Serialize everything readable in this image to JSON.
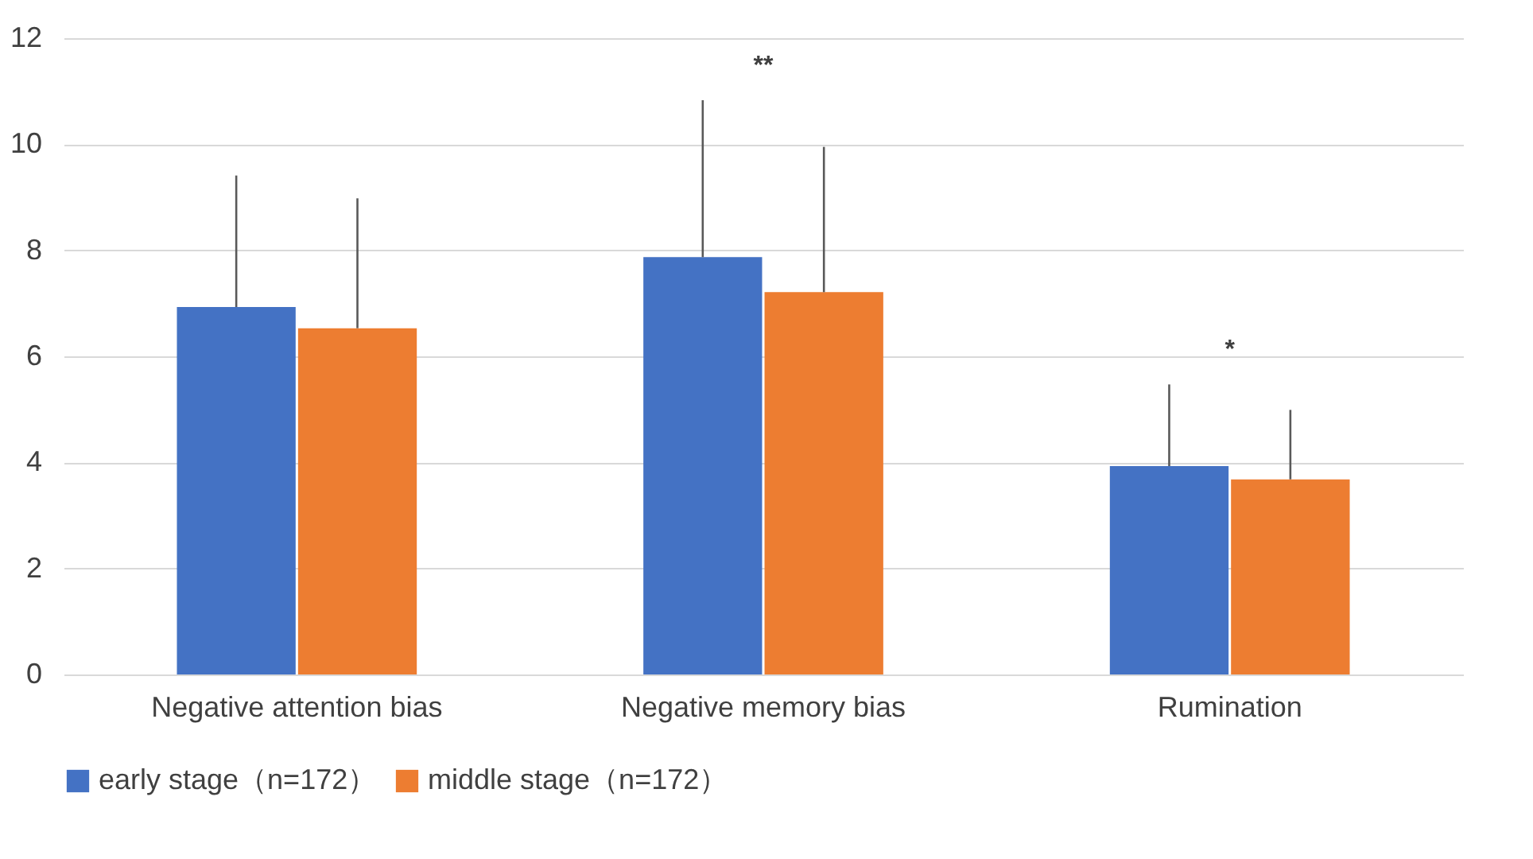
{
  "chart_data": {
    "type": "bar",
    "categories": [
      "Negative attention bias",
      "Negative memory bias",
      "Rumination"
    ],
    "series": [
      {
        "name": "early stage（n=172）",
        "color": "#4472c4",
        "values": [
          6.93,
          7.87,
          3.93
        ],
        "errors": [
          [
            6.93,
            9.41
          ],
          [
            7.87,
            10.83
          ],
          [
            3.93,
            5.47
          ]
        ]
      },
      {
        "name": "middle stage（n=172）",
        "color": "#ed7d31",
        "values": [
          6.53,
          7.21,
          3.68
        ],
        "errors": [
          [
            6.53,
            8.98
          ],
          [
            7.21,
            9.95
          ],
          [
            3.68,
            4.99
          ]
        ]
      }
    ],
    "ylim": [
      0,
      12
    ],
    "yticks": [
      0,
      2,
      4,
      6,
      8,
      10,
      12
    ],
    "grid": "y",
    "legend": "bottom",
    "annotations": [
      "**",
      "*"
    ]
  }
}
